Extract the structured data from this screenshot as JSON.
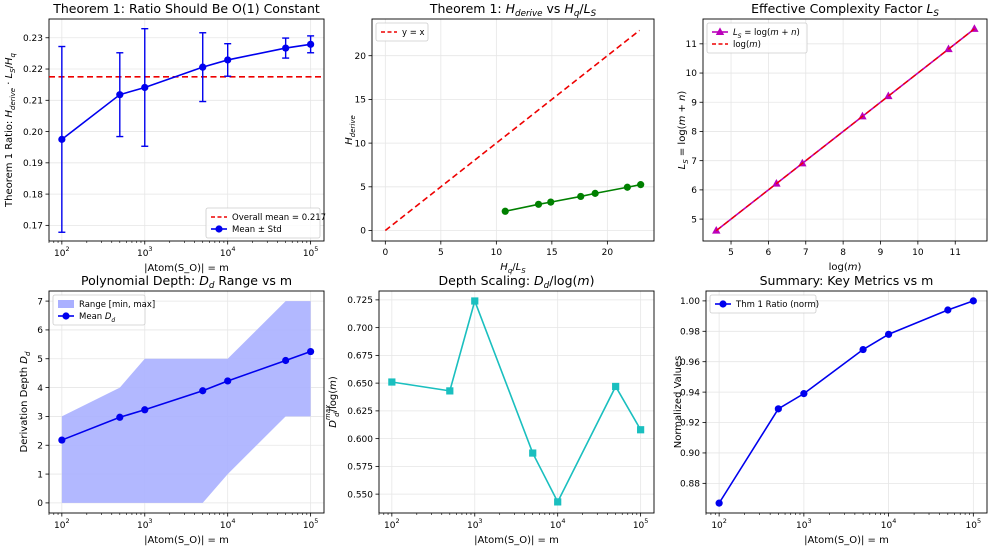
{
  "chart_data": [
    {
      "id": "p1",
      "type": "line",
      "title": "Theorem 1: Ratio Should Be O(1) Constant",
      "xlabel": "|Atom(S_O)| = m",
      "ylabel": "Theorem 1 Ratio: H_derive · L_S/H_q",
      "xscale": "log",
      "xlim": [
        70,
        145000
      ],
      "ylim": [
        0.165,
        0.236
      ],
      "yticks": [
        "0.17",
        "0.18",
        "0.19",
        "0.20",
        "0.21",
        "0.22",
        "0.23"
      ],
      "xticks": [
        "10^2",
        "10^3",
        "10^4",
        "10^5"
      ],
      "series": [
        {
          "name": "Mean ± Std",
          "color": "#0000ee",
          "x": [
            100,
            500,
            1000,
            5000,
            10000,
            50000,
            100000
          ],
          "y": [
            0.1975,
            0.2118,
            0.2141,
            0.2206,
            0.2229,
            0.2267,
            0.2279
          ],
          "err": [
            0.0297,
            0.0134,
            0.0188,
            0.011,
            0.0052,
            0.0032,
            0.0027
          ]
        }
      ],
      "hline": {
        "name": "Overall mean = 0.217",
        "value": 0.2175,
        "color": "#ee0000"
      },
      "legend": "lower-right"
    },
    {
      "id": "p2",
      "type": "line",
      "title": "Theorem 1: H_derive vs H_q/L_S",
      "xlabel": "H_q/L_S",
      "ylabel": "H_derive",
      "xlim": [
        -1.2,
        24.2
      ],
      "ylim": [
        -1.2,
        24.2
      ],
      "xticks": [
        "0",
        "5",
        "10",
        "15",
        "20"
      ],
      "yticks": [
        "0",
        "5",
        "10",
        "15",
        "20"
      ],
      "series": [
        {
          "name": "y = x",
          "color": "#ee0000",
          "dashed": true,
          "x": [
            0,
            22.9
          ],
          "y": [
            0,
            22.9
          ]
        },
        {
          "name": "",
          "color": "#008000",
          "x": [
            10.8,
            13.8,
            14.9,
            17.6,
            18.9,
            21.8,
            23.0
          ],
          "y": [
            2.2,
            3.0,
            3.25,
            3.9,
            4.25,
            4.95,
            5.25
          ]
        }
      ],
      "legend": "top-left"
    },
    {
      "id": "p3",
      "type": "line",
      "title": "Effective Complexity Factor L_S",
      "xlabel": "log(m)",
      "ylabel": "L_S = log(m + n)",
      "xlim": [
        4.25,
        11.85
      ],
      "ylim": [
        4.25,
        11.85
      ],
      "xticks": [
        "5",
        "6",
        "7",
        "8",
        "9",
        "10",
        "11"
      ],
      "yticks": [
        "5",
        "6",
        "7",
        "8",
        "9",
        "10",
        "11"
      ],
      "series": [
        {
          "name": "L_S = log(m + n)",
          "color": "#bb00bb",
          "x": [
            4.605,
            6.215,
            6.908,
            8.517,
            9.21,
            10.82,
            11.513
          ],
          "y": [
            4.605,
            6.215,
            6.908,
            8.517,
            9.21,
            10.82,
            11.513
          ]
        },
        {
          "name": "log(m)",
          "color": "#ee0000",
          "dashed": true,
          "x": [
            4.605,
            11.513
          ],
          "y": [
            4.605,
            11.513
          ]
        }
      ],
      "legend": "top-left"
    },
    {
      "id": "p4",
      "type": "area",
      "title": "Polynomial Depth: D_d Range vs m",
      "xlabel": "|Atom(S_O)| = m",
      "ylabel": "Derivation Depth D_d",
      "xscale": "log",
      "xlim": [
        70,
        145000
      ],
      "ylim": [
        -0.35,
        7.35
      ],
      "xticks": [
        "10^2",
        "10^3",
        "10^4",
        "10^5"
      ],
      "yticks": [
        "0",
        "1",
        "2",
        "3",
        "4",
        "5",
        "6",
        "7"
      ],
      "x": [
        100,
        500,
        1000,
        5000,
        10000,
        50000,
        100000
      ],
      "range_min": [
        0,
        0,
        0,
        0,
        1,
        3,
        3
      ],
      "range_max": [
        3,
        4,
        5,
        5,
        5,
        7,
        7
      ],
      "mean": [
        2.18,
        2.97,
        3.23,
        3.89,
        4.23,
        4.94,
        5.25
      ],
      "series": [
        {
          "name": "Range [min, max]",
          "color": "#aab0ff"
        },
        {
          "name": "Mean D_d",
          "color": "#0000ee"
        }
      ],
      "legend": "top-left"
    },
    {
      "id": "p5",
      "type": "line",
      "title": "Depth Scaling: D_d/log(m)",
      "xlabel": "|Atom(S_O)| = m",
      "ylabel": "D_d^max/log(m)",
      "xscale": "log",
      "xlim": [
        70,
        145000
      ],
      "ylim": [
        0.533,
        0.733
      ],
      "xticks": [
        "10^2",
        "10^3",
        "10^4",
        "10^5"
      ],
      "yticks": [
        "0.550",
        "0.575",
        "0.600",
        "0.625",
        "0.650",
        "0.675",
        "0.700",
        "0.725"
      ],
      "series": [
        {
          "name": "",
          "color": "#1abfbf",
          "x": [
            100,
            500,
            1000,
            5000,
            10000,
            50000,
            100000
          ],
          "y": [
            0.651,
            0.643,
            0.724,
            0.587,
            0.543,
            0.647,
            0.608
          ]
        }
      ]
    },
    {
      "id": "p6",
      "type": "line",
      "title": "Summary: Key Metrics vs m",
      "xlabel": "|Atom(S_O)| = m",
      "ylabel": "Normalized Values",
      "xscale": "log",
      "xlim": [
        70,
        145000
      ],
      "ylim": [
        0.8605,
        1.0065
      ],
      "xticks": [
        "10^2",
        "10^3",
        "10^4",
        "10^5"
      ],
      "yticks": [
        "0.88",
        "0.90",
        "0.92",
        "0.94",
        "0.96",
        "0.98",
        "1.00"
      ],
      "series": [
        {
          "name": "Thm 1 Ratio (norm)",
          "color": "#0000ee",
          "x": [
            100,
            500,
            1000,
            5000,
            10000,
            50000,
            100000
          ],
          "y": [
            0.867,
            0.929,
            0.939,
            0.968,
            0.978,
            0.994,
            1.0
          ]
        }
      ],
      "legend": "top-left"
    }
  ]
}
